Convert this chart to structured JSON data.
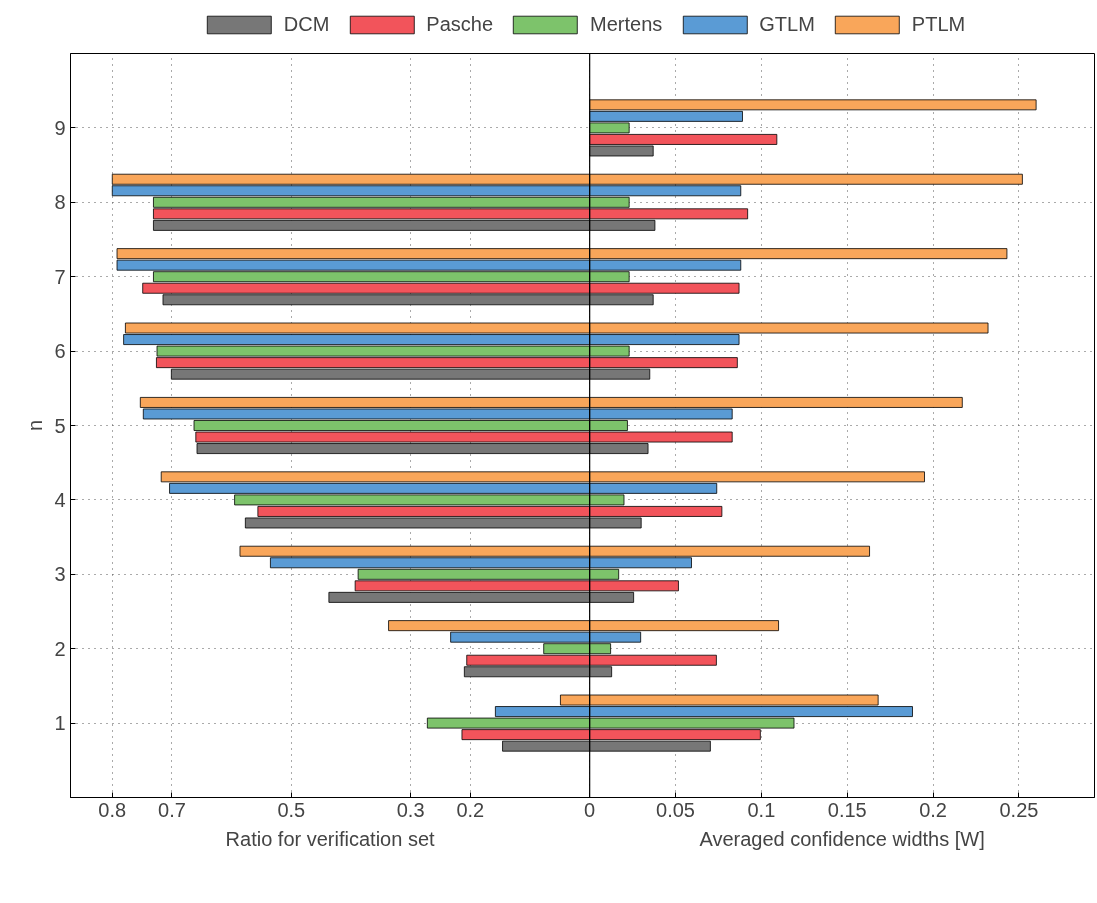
{
  "chart_data": [
    {
      "type": "bar",
      "orientation": "horizontal",
      "xlabel": "Ratio for verification set",
      "ylabel": "n",
      "categories": [
        "9",
        "8",
        "7",
        "6",
        "5",
        "4",
        "3",
        "2",
        "1"
      ],
      "xlim": [
        0.87,
        0
      ],
      "xticks": [
        0.8,
        0.7,
        0.5,
        0.3,
        0.2,
        0
      ],
      "grid": true,
      "legend": "top",
      "series": [
        {
          "name": "DCM",
          "color": "#777777",
          "values": [
            null,
            0.731,
            0.715,
            0.701,
            0.658,
            0.577,
            0.437,
            0.21,
            0.146
          ]
        },
        {
          "name": "Pasche",
          "color": "#f2545b",
          "values": [
            null,
            0.731,
            0.749,
            0.726,
            0.66,
            0.556,
            0.393,
            0.206,
            0.214
          ]
        },
        {
          "name": "Mertens",
          "color": "#7dc36b",
          "values": [
            null,
            0.731,
            0.731,
            0.725,
            0.663,
            0.595,
            0.388,
            0.077,
            0.272
          ]
        },
        {
          "name": "GTLM",
          "color": "#5a9bd5",
          "values": [
            null,
            0.8,
            0.792,
            0.781,
            0.748,
            0.704,
            0.535,
            0.233,
            0.158
          ]
        },
        {
          "name": "PTLM",
          "color": "#f9a65a",
          "values": [
            null,
            0.8,
            0.792,
            0.778,
            0.753,
            0.718,
            0.586,
            0.337,
            0.049
          ]
        }
      ]
    },
    {
      "type": "bar",
      "orientation": "horizontal",
      "xlabel": "Averaged confidence widths [W]",
      "categories": [
        "9",
        "8",
        "7",
        "6",
        "5",
        "4",
        "3",
        "2",
        "1"
      ],
      "xlim": [
        0,
        0.294
      ],
      "xticks": [
        0.05,
        0.1,
        0.15,
        0.2,
        0.25
      ],
      "grid": true,
      "tick_labels": "x",
      "series": [
        {
          "color": "#777777",
          "values": [
            0.037,
            0.038,
            0.037,
            0.035,
            0.034,
            0.03,
            0.0256,
            0.0128,
            0.0703
          ]
        },
        {
          "color": "#f2545b",
          "values": [
            0.109,
            0.092,
            0.087,
            0.086,
            0.083,
            0.077,
            0.0517,
            0.0738,
            0.0994
          ]
        },
        {
          "color": "#7dc36b",
          "values": [
            0.023,
            0.023,
            0.023,
            0.023,
            0.022,
            0.02,
            0.0169,
            0.0122,
            0.119
          ]
        },
        {
          "color": "#5a9bd5",
          "values": [
            0.089,
            0.088,
            0.088,
            0.087,
            0.083,
            0.074,
            0.0593,
            0.0297,
            0.188
          ]
        },
        {
          "color": "#f9a65a",
          "values": [
            0.26,
            0.252,
            0.243,
            0.232,
            0.217,
            0.195,
            0.163,
            0.11,
            0.168
          ]
        }
      ]
    }
  ]
}
